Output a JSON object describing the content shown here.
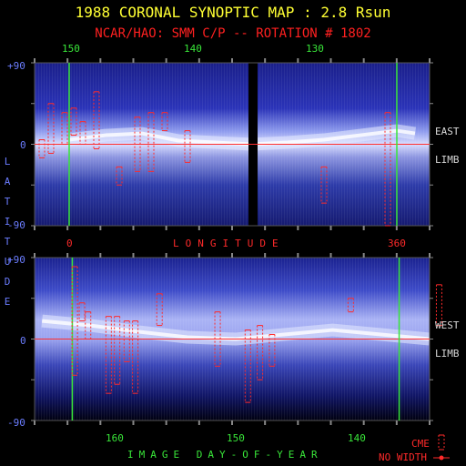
{
  "header": {
    "title": "1988 CORONAL SYNOPTIC MAP : 2.8 Rsun",
    "subtitle": "NCAR/HAO: SMM C/P -- ROTATION # 1802"
  },
  "axes": {
    "lat_vertical": "LATITUDE",
    "top_panel": {
      "top_ticks": [
        "150",
        "140",
        "130"
      ],
      "y_ticks": [
        "+90",
        "0",
        "-90"
      ],
      "side_labels": [
        "EAST",
        "LIMB"
      ],
      "bottom_ticks": [
        "0",
        "360"
      ],
      "xlabel": "LONGITUDE"
    },
    "bottom_panel": {
      "y_ticks": [
        "+90",
        "0",
        "-90"
      ],
      "side_labels": [
        "WEST",
        "LIMB"
      ],
      "bottom_ticks": [
        "160",
        "150",
        "140"
      ],
      "xlabel": "IMAGE DAY-OF-YEAR"
    }
  },
  "legend": {
    "cme_label": "CME",
    "nowidth_label": "NO WIDTH"
  },
  "colors": {
    "title": "#ffff33",
    "subtitle": "#ff2020",
    "lat_axis": "#6b7dff",
    "green_marker": "#39e639",
    "cme": "#ff2a2a",
    "equator": "#ff3030",
    "map_base": "#1a1f8a"
  },
  "chart_data": [
    {
      "type": "heatmap",
      "panel": "East limb",
      "xlabel": "LONGITUDE",
      "x_range": [
        0,
        360
      ],
      "y_range": [
        -90,
        90
      ],
      "y_ticks": [
        90,
        0,
        -90
      ],
      "top_axis_day_ticks": [
        150,
        140,
        130
      ],
      "green_markers_longitude": [
        0,
        360
      ],
      "data_gap_longitude": [
        197,
        207
      ],
      "streamer_belt": [
        {
          "lon": 0,
          "lat": 5
        },
        {
          "lon": 40,
          "lat": 10
        },
        {
          "lon": 80,
          "lat": 12
        },
        {
          "lon": 120,
          "lat": 4
        },
        {
          "lon": 160,
          "lat": 2
        },
        {
          "lon": 200,
          "lat": 0
        },
        {
          "lon": 240,
          "lat": 2
        },
        {
          "lon": 280,
          "lat": 5
        },
        {
          "lon": 320,
          "lat": 10
        },
        {
          "lon": 360,
          "lat": 15
        },
        {
          "lon": 380,
          "lat": 12
        }
      ],
      "cme_events": [
        {
          "lon": -30,
          "lat_min": -15,
          "lat_max": 5
        },
        {
          "lon": -20,
          "lat_min": -10,
          "lat_max": 45
        },
        {
          "lon": -5,
          "lat_min": 0,
          "lat_max": 35
        },
        {
          "lon": 5,
          "lat_min": 10,
          "lat_max": 40
        },
        {
          "lon": 15,
          "lat_min": 0,
          "lat_max": 25
        },
        {
          "lon": 30,
          "lat_min": -5,
          "lat_max": 58
        },
        {
          "lon": 55,
          "lat_min": -45,
          "lat_max": -25
        },
        {
          "lon": 75,
          "lat_min": -30,
          "lat_max": 30
        },
        {
          "lon": 90,
          "lat_min": -30,
          "lat_max": 35
        },
        {
          "lon": 105,
          "lat_min": 15,
          "lat_max": 35
        },
        {
          "lon": 130,
          "lat_min": -20,
          "lat_max": 15
        },
        {
          "lon": 280,
          "lat": -40,
          "lat_min": -65,
          "lat_max": -25
        },
        {
          "lon": 350,
          "lat_min": -90,
          "lat_max": 35
        }
      ]
    },
    {
      "type": "heatmap",
      "panel": "West limb",
      "xlabel": "IMAGE DAY-OF-YEAR",
      "x_range": [
        166,
        133
      ],
      "x_ticks": [
        160,
        150,
        140
      ],
      "y_range": [
        -90,
        90
      ],
      "y_ticks": [
        90,
        0,
        -90
      ],
      "green_markers_day": [
        163.5,
        136.5
      ],
      "streamer_belt": [
        {
          "day": 166,
          "lat": 20
        },
        {
          "day": 162,
          "lat": 15
        },
        {
          "day": 158,
          "lat": 8
        },
        {
          "day": 154,
          "lat": 2
        },
        {
          "day": 150,
          "lat": 0
        },
        {
          "day": 146,
          "lat": 5
        },
        {
          "day": 142,
          "lat": 10
        },
        {
          "day": 138,
          "lat": 5
        },
        {
          "day": 134,
          "lat": 0
        }
      ],
      "cme_events": [
        {
          "day": 163.3,
          "lat_min": -40,
          "lat_max": 80
        },
        {
          "day": 162.7,
          "lat_min": 20,
          "lat_max": 40
        },
        {
          "day": 162.2,
          "lat_min": 0,
          "lat_max": 30
        },
        {
          "day": 160.5,
          "lat_min": -60,
          "lat_max": 25
        },
        {
          "day": 159.8,
          "lat_min": -50,
          "lat_max": 25
        },
        {
          "day": 159.0,
          "lat_min": -25,
          "lat_max": 20
        },
        {
          "day": 158.3,
          "lat_min": -60,
          "lat_max": 20
        },
        {
          "day": 156.3,
          "lat_min": 15,
          "lat_max": 50
        },
        {
          "day": 151.5,
          "lat_min": -30,
          "lat_max": 30
        },
        {
          "day": 149.0,
          "lat_min": -70,
          "lat_max": 10
        },
        {
          "day": 148.0,
          "lat_min": -45,
          "lat_max": 15
        },
        {
          "day": 147.0,
          "lat_min": -30,
          "lat_max": 5
        },
        {
          "day": 140.5,
          "lat_min": 30,
          "lat_max": 45
        },
        {
          "day": 133.2,
          "lat_min": 15,
          "lat_max": 60
        }
      ]
    }
  ]
}
